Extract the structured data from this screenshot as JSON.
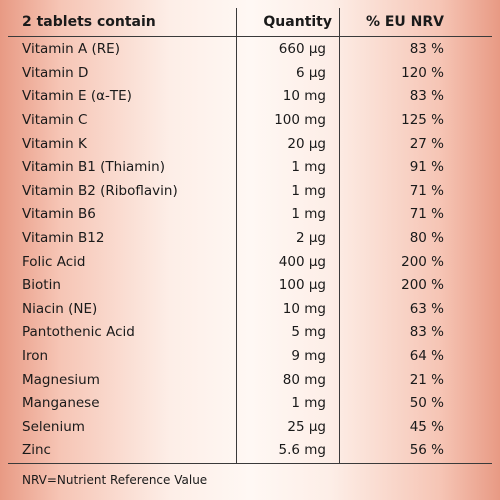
{
  "table": {
    "headers": {
      "nutrient": "2 tablets contain",
      "quantity": "Quantity",
      "nrv": "% EU NRV"
    },
    "rows": [
      {
        "nutrient": "Vitamin A (RE)",
        "quantity": "660 µg",
        "nrv": "83 %"
      },
      {
        "nutrient": "Vitamin D",
        "quantity": "6 µg",
        "nrv": "120 %"
      },
      {
        "nutrient": "Vitamin E (α-TE)",
        "quantity": "10 mg",
        "nrv": "83 %"
      },
      {
        "nutrient": "Vitamin C",
        "quantity": "100 mg",
        "nrv": "125 %"
      },
      {
        "nutrient": "Vitamin K",
        "quantity": "20 µg",
        "nrv": "27 %"
      },
      {
        "nutrient": "Vitamin B1 (Thiamin)",
        "quantity": "1 mg",
        "nrv": "91 %"
      },
      {
        "nutrient": "Vitamin B2 (Riboflavin)",
        "quantity": "1 mg",
        "nrv": "71 %"
      },
      {
        "nutrient": "Vitamin B6",
        "quantity": "1 mg",
        "nrv": "71 %"
      },
      {
        "nutrient": "Vitamin B12",
        "quantity": "2 µg",
        "nrv": "80 %"
      },
      {
        "nutrient": "Folic Acid",
        "quantity": "400 µg",
        "nrv": "200 %"
      },
      {
        "nutrient": "Biotin",
        "quantity": "100 µg",
        "nrv": "200 %"
      },
      {
        "nutrient": "Niacin (NE)",
        "quantity": "10 mg",
        "nrv": "63 %"
      },
      {
        "nutrient": "Pantothenic Acid",
        "quantity": "5 mg",
        "nrv": "83 %"
      },
      {
        "nutrient": "Iron",
        "quantity": "9 mg",
        "nrv": "64 %"
      },
      {
        "nutrient": "Magnesium",
        "quantity": "80 mg",
        "nrv": "21 %"
      },
      {
        "nutrient": "Manganese",
        "quantity": "1 mg",
        "nrv": "50 %"
      },
      {
        "nutrient": "Selenium",
        "quantity": "25 µg",
        "nrv": "45 %"
      },
      {
        "nutrient": "Zinc",
        "quantity": "5.6 mg",
        "nrv": "56 %"
      }
    ]
  },
  "footnote": "NRV=Nutrient Reference Value",
  "colors": {
    "edge": "#e89a84",
    "center": "#fff8f4",
    "rule": "#3a3a3a"
  }
}
